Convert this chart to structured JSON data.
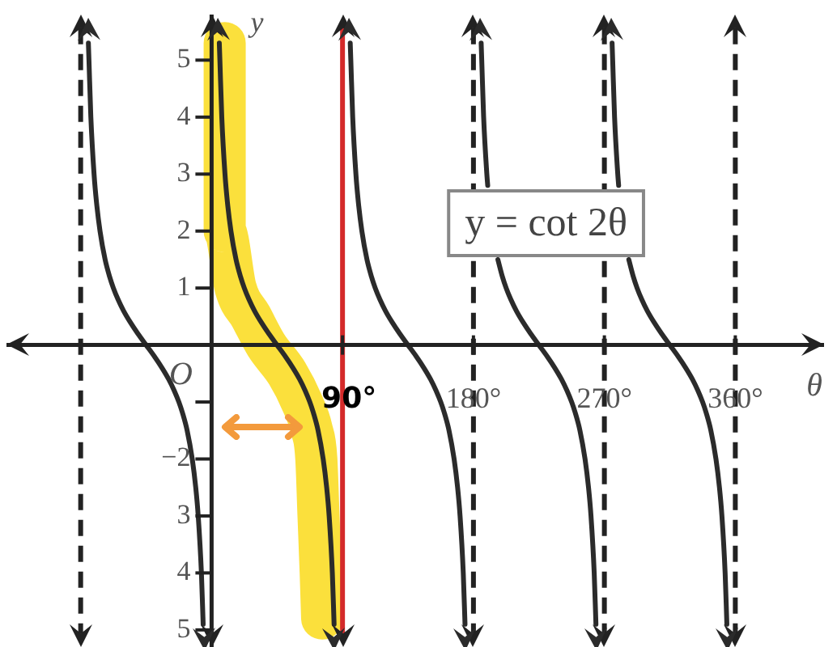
{
  "chart_data": {
    "type": "line",
    "xlabel": "θ",
    "ylabel": "y",
    "xlim": [
      -141,
      421
    ],
    "ylim": [
      -5.3,
      5.8
    ],
    "xticks": [
      {
        "value": 90,
        "label": "90°"
      },
      {
        "value": 180,
        "label": "180°"
      },
      {
        "value": 270,
        "label": "270°"
      },
      {
        "value": 360,
        "label": "360°"
      }
    ],
    "yticks": [
      {
        "value": -5,
        "label": "5"
      },
      {
        "value": -4,
        "label": "4"
      },
      {
        "value": -3,
        "label": "3"
      },
      {
        "value": -2,
        "label": "−2"
      },
      {
        "value": -1,
        "label": null
      },
      1,
      2,
      3,
      4,
      5
    ],
    "marker": "none",
    "series": [
      {
        "color": "#fbe03c",
        "x": [
          9,
          9,
          9,
          9,
          16.5,
          27,
          37.5,
          52,
          62,
          69,
          72,
          73.5,
          75,
          76
        ],
        "values": [
          5.3,
          4,
          3,
          2,
          1,
          0.5,
          0,
          -0.5,
          -1,
          -1.5,
          -2,
          -3,
          -4,
          -4.8
        ]
      },
      {
        "color": "#2b2b2b",
        "x": [
          -84.7,
          -84.3,
          -83,
          -80.8,
          -79.1,
          -76.7,
          -73.2,
          -70.1,
          -67.5,
          -64.3,
          -60.5,
          -55.9,
          -50.7,
          -45,
          -39.3,
          -34.1,
          -29.5,
          -25.7,
          -22.5,
          -19.9,
          -16.8,
          -13.3,
          -10.9,
          -9.2,
          -7,
          -5.8,
          0,
          5.3,
          5.7,
          7,
          9.2,
          10.9,
          13.3,
          16.8,
          19.9,
          22.5,
          25.7,
          29.5,
          34.1,
          39.3,
          45,
          50.7,
          55.9,
          60.5,
          64.3,
          67.5,
          70.1,
          73.2,
          76.7,
          79.1,
          80.8,
          83,
          84.2,
          90,
          95.3,
          95.7,
          97,
          99.2,
          100.9,
          103.3,
          106.8,
          109.9,
          112.5,
          115.7,
          119.5,
          124.1,
          129.3,
          135,
          140.7,
          145.9,
          150.5,
          154.3,
          157.5,
          160.1,
          163.2,
          166.7,
          169.1,
          170.8,
          173,
          174.2,
          180,
          185.3,
          185.7,
          187,
          189.2,
          189.8,
          193.3,
          196.8,
          199.9,
          202.5,
          205.7,
          209.5,
          214.1,
          219.3,
          225,
          230.7,
          235.9,
          240.5,
          244.3,
          247.5,
          250.1,
          253.2,
          256.7,
          259.1,
          260.8,
          263,
          264.2,
          270,
          275.3,
          275.7,
          277,
          279.2,
          279.8,
          283.3,
          286.8,
          289.9,
          292.5,
          295.7,
          299.5,
          304.1,
          309.3,
          315,
          320.7,
          325.9,
          330.5,
          334.3,
          337.5,
          340.1,
          343.2,
          346.7,
          349.1,
          350.8,
          353,
          354.2
        ],
        "values": [
          5.3,
          5,
          4,
          3,
          2.5,
          2,
          1.5,
          1.2,
          1,
          0.8,
          0.6,
          0.4,
          0.2,
          0,
          -0.2,
          -0.4,
          -0.6,
          -0.8,
          -1,
          -1.2,
          -1.5,
          -2,
          -2.5,
          -3,
          -4,
          -4.9,
          null,
          5.3,
          5,
          4,
          3,
          2.5,
          2,
          1.5,
          1.2,
          1,
          0.8,
          0.6,
          0.4,
          0.2,
          0,
          -0.2,
          -0.4,
          -0.6,
          -0.8,
          -1,
          -1.2,
          -1.5,
          -2,
          -2.5,
          -3,
          -4,
          -4.9,
          null,
          5.3,
          5,
          4,
          3,
          2.5,
          2,
          1.5,
          1.2,
          1,
          0.8,
          0.6,
          0.4,
          0.2,
          0,
          -0.2,
          -0.4,
          -0.6,
          -0.8,
          -1,
          -1.2,
          -1.5,
          -2,
          -2.5,
          -3,
          -4,
          -4.9,
          null,
          5.3,
          5,
          4,
          3,
          2.8,
          null,
          1.5,
          1.2,
          1,
          0.8,
          0.6,
          0.4,
          0.2,
          0,
          -0.2,
          -0.4,
          -0.6,
          -0.8,
          -1,
          -1.2,
          -1.5,
          -2,
          -2.5,
          -3,
          -4,
          -4.9,
          null,
          5.3,
          5,
          4,
          3,
          2.8,
          null,
          1.5,
          1.2,
          1,
          0.8,
          0.6,
          0.4,
          0.2,
          0,
          -0.2,
          -0.4,
          -0.6,
          -0.8,
          -1,
          -1.2,
          -1.5,
          -2,
          -2.5,
          -3,
          -4,
          -4.9
        ]
      }
    ],
    "ref_lines": [
      {
        "axis": "x",
        "value": -90,
        "color": "#222222",
        "line_style": "dashed"
      },
      {
        "axis": "x",
        "value": 90,
        "color": "#d42a2a",
        "line_style": "solid"
      },
      {
        "axis": "x",
        "value": 180,
        "color": "#222222",
        "line_style": "dashed"
      },
      {
        "axis": "x",
        "value": 270,
        "color": "#222222",
        "line_style": "dashed"
      },
      {
        "axis": "x",
        "value": 360,
        "color": "#222222",
        "line_style": "dashed"
      }
    ],
    "annotations": [
      "O",
      "y = cot 2θ"
    ]
  }
}
